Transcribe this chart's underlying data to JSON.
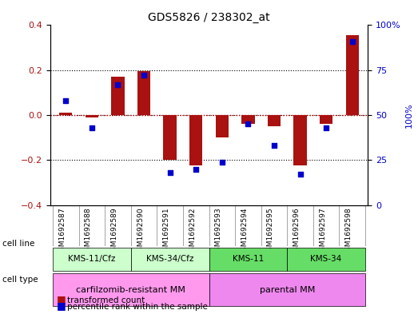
{
  "title": "GDS5826 / 238302_at",
  "samples": [
    "GSM1692587",
    "GSM1692588",
    "GSM1692589",
    "GSM1692590",
    "GSM1692591",
    "GSM1692592",
    "GSM1692593",
    "GSM1692594",
    "GSM1692595",
    "GSM1692596",
    "GSM1692597",
    "GSM1692598"
  ],
  "transformed_count": [
    0.01,
    -0.01,
    0.17,
    0.195,
    -0.2,
    -0.225,
    -0.1,
    -0.04,
    -0.05,
    -0.225,
    -0.04,
    0.355
  ],
  "percentile_rank": [
    58,
    43,
    67,
    72,
    18,
    20,
    24,
    45,
    33,
    17,
    43,
    91
  ],
  "cell_line_groups": [
    {
      "label": "KMS-11/Cfz",
      "start": 0,
      "end": 2,
      "color": "#99ff99"
    },
    {
      "label": "KMS-34/Cfz",
      "start": 3,
      "end": 5,
      "color": "#99ff99"
    },
    {
      "label": "KMS-11",
      "start": 6,
      "end": 8,
      "color": "#33cc33"
    },
    {
      "label": "KMS-34",
      "start": 9,
      "end": 11,
      "color": "#33cc33"
    }
  ],
  "cell_type_groups": [
    {
      "label": "carfilzomib-resistant MM",
      "start": 0,
      "end": 5,
      "color": "#ff99ff"
    },
    {
      "label": "parental MM",
      "start": 6,
      "end": 11,
      "color": "#ff99ff"
    }
  ],
  "ylim": [
    -0.4,
    0.4
  ],
  "y2lim": [
    0,
    100
  ],
  "bar_color": "#aa1111",
  "dot_color": "#0000cc",
  "dotted_line_color": "#000000",
  "zero_line_color": "#cc0000",
  "grid_lines": [
    0.2,
    0.0,
    -0.2
  ],
  "bar_width": 0.5
}
